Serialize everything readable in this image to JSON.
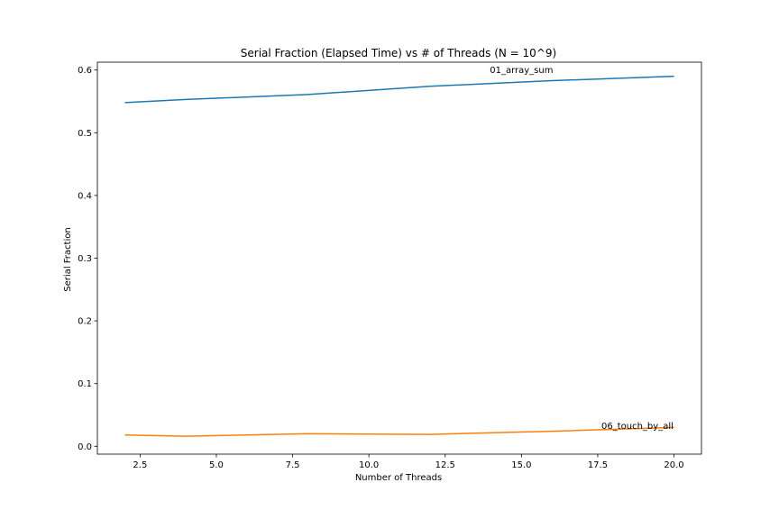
{
  "chart_data": {
    "type": "line",
    "title": "Serial Fraction (Elapsed Time) vs # of Threads (N = 10^9)",
    "xlabel": "Number of Threads",
    "ylabel": "Serial Fraction",
    "xlim": [
      1.1,
      20.9
    ],
    "ylim": [
      -0.0125,
      0.6125
    ],
    "xticks": [
      2.5,
      5.0,
      7.5,
      10.0,
      12.5,
      15.0,
      17.5,
      20.0
    ],
    "xtick_labels": [
      "2.5",
      "5.0",
      "7.5",
      "10.0",
      "12.5",
      "15.0",
      "17.5",
      "20.0"
    ],
    "yticks": [
      0.0,
      0.1,
      0.2,
      0.3,
      0.4,
      0.5,
      0.6
    ],
    "ytick_labels": [
      "0.0",
      "0.1",
      "0.2",
      "0.3",
      "0.4",
      "0.5",
      "0.6"
    ],
    "grid": false,
    "legend": false,
    "series": [
      {
        "color": "#1f77b4",
        "x": [
          2,
          4,
          8,
          12,
          16,
          20
        ],
        "values": [
          0.548,
          0.553,
          0.561,
          0.574,
          0.583,
          0.59
        ]
      },
      {
        "color": "#ff7f0e",
        "x": [
          2,
          4,
          8,
          12,
          16,
          20
        ],
        "values": [
          0.018,
          0.016,
          0.02,
          0.019,
          0.024,
          0.03
        ]
      }
    ],
    "annotations": [
      {
        "text": "01_array_sum",
        "x": 15.0,
        "y": 0.6
      },
      {
        "text": "06_touch_by_all",
        "x": 18.8,
        "y": 0.033
      }
    ]
  }
}
